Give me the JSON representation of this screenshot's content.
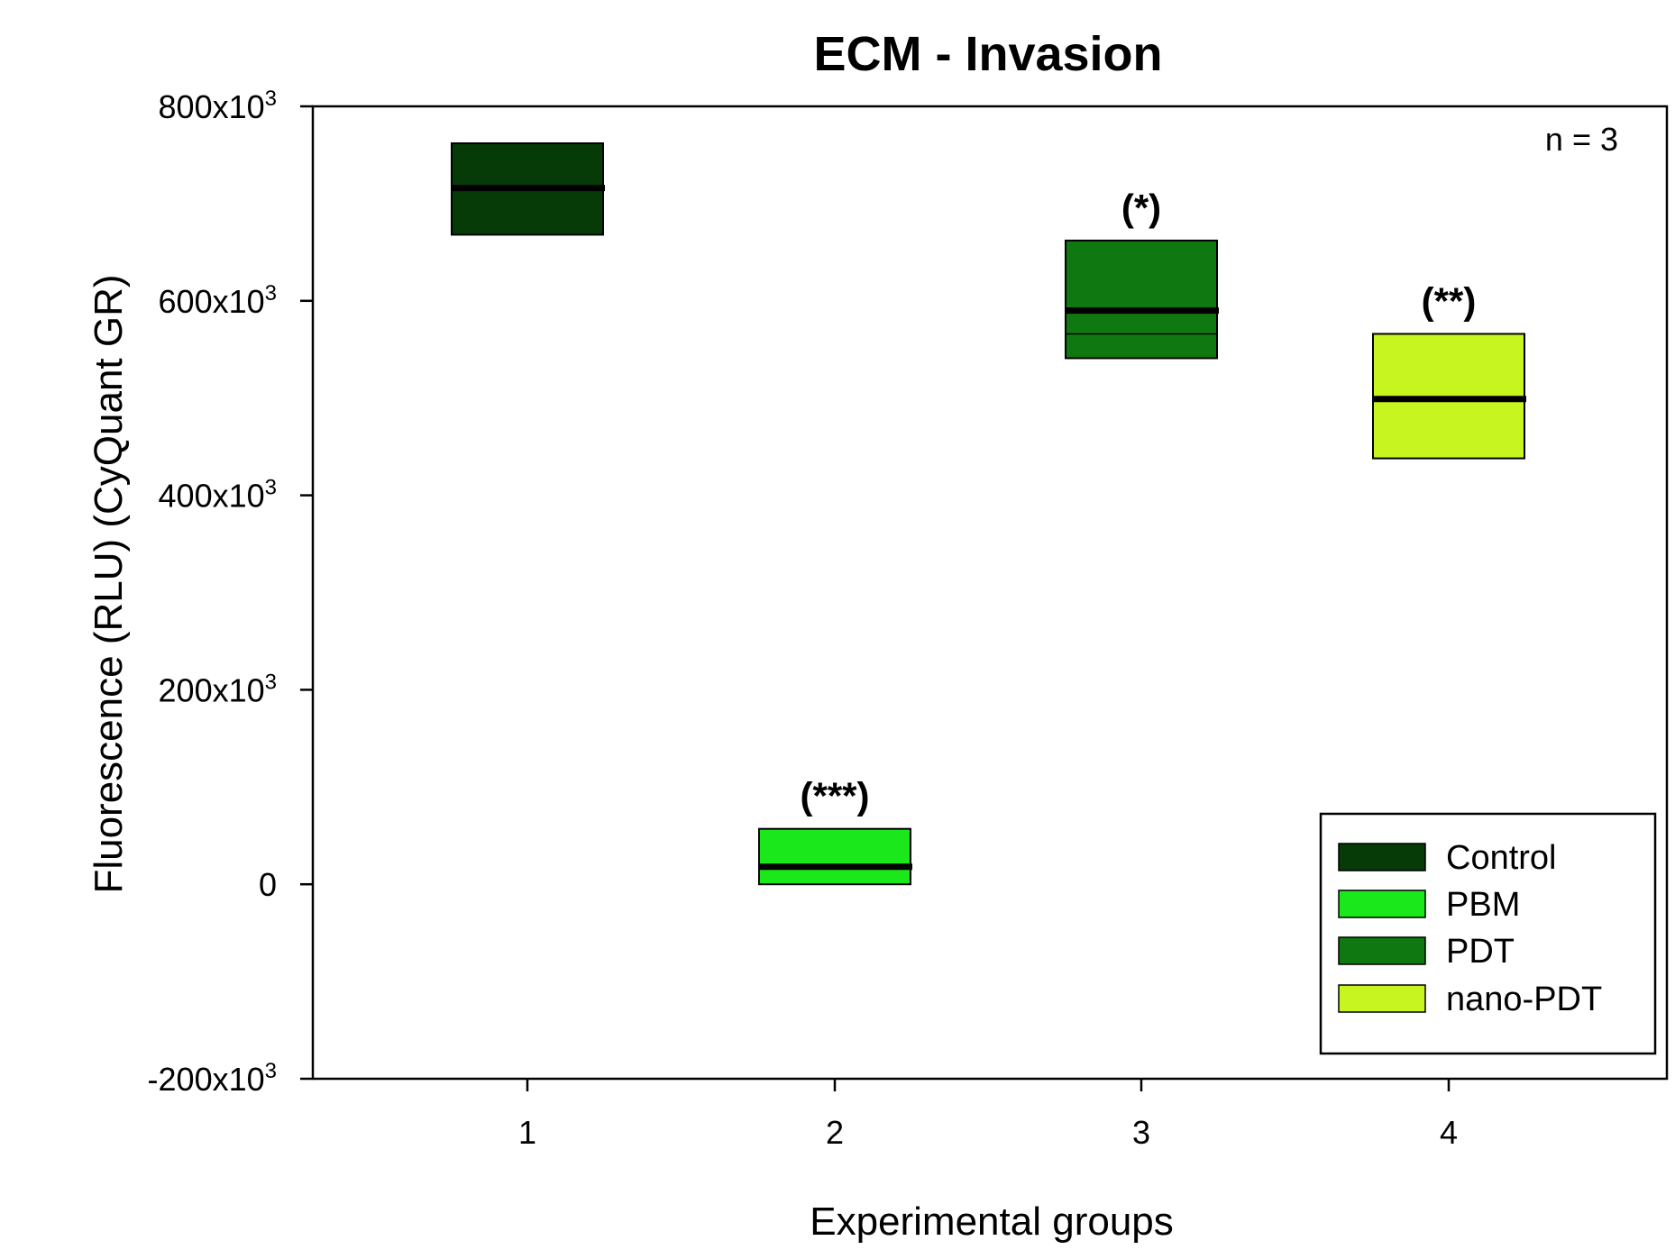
{
  "chart_data": {
    "type": "box",
    "title": "ECM - Invasion",
    "xlabel": "Experimental groups",
    "ylabel": "Fluorescence (RLU) (CyQuant GR)",
    "ylim": [
      -200000,
      800000
    ],
    "y_ticks": [
      -200000,
      0,
      200000,
      400000,
      600000,
      800000
    ],
    "y_tick_labels": [
      {
        "base": "-200x10",
        "exp": "3"
      },
      {
        "base": "0",
        "exp": ""
      },
      {
        "base": "200x10",
        "exp": "3"
      },
      {
        "base": "400x10",
        "exp": "3"
      },
      {
        "base": "600x10",
        "exp": "3"
      },
      {
        "base": "800x10",
        "exp": "3"
      }
    ],
    "categories": [
      "1",
      "2",
      "3",
      "4"
    ],
    "annotation": "n = 3",
    "grid": false,
    "legend_position": "bottom-right",
    "series": [
      {
        "name": "Control",
        "x": "1",
        "color": "#063a06",
        "q1": 668000,
        "median": 716000,
        "q3": 762000,
        "extra_line": null,
        "significance": ""
      },
      {
        "name": "PBM",
        "x": "2",
        "color": "#1be81b",
        "q1": 0,
        "median": 18000,
        "q3": 57000,
        "extra_line": null,
        "significance": "(***)"
      },
      {
        "name": "PDT",
        "x": "3",
        "color": "#107810",
        "q1": 541000,
        "median": 590000,
        "q3": 662000,
        "extra_line": 566000,
        "significance": "(*)"
      },
      {
        "name": "nano-PDT",
        "x": "4",
        "color": "#c6f51f",
        "q1": 438000,
        "median": 499000,
        "q3": 566000,
        "extra_line": null,
        "significance": "(**)"
      }
    ]
  }
}
